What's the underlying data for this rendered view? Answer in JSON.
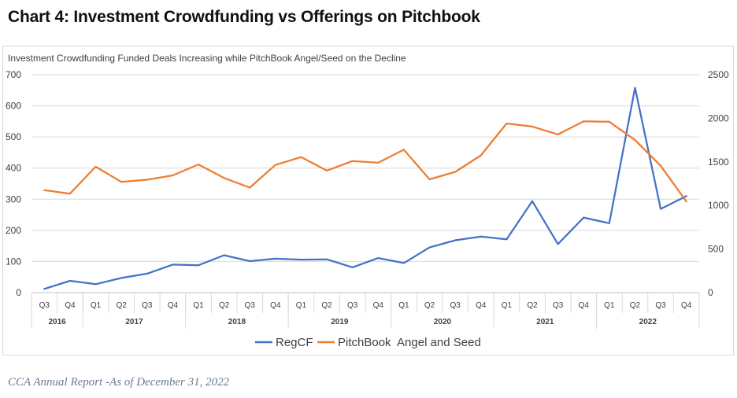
{
  "page": {
    "heading": "Chart 4: Investment Crowdfunding vs Offerings on Pitchbook",
    "caption": "CCA Annual Report -As of December 31, 2022"
  },
  "chart_data": {
    "type": "line",
    "title": "Investment Crowdfunding Funded Deals Increasing while PitchBook Angel/Seed on the Decline",
    "x": [
      "Q3",
      "Q4",
      "Q1",
      "Q2",
      "Q3",
      "Q4",
      "Q1",
      "Q2",
      "Q3",
      "Q4",
      "Q1",
      "Q2",
      "Q3",
      "Q4",
      "Q1",
      "Q2",
      "Q3",
      "Q4",
      "Q1",
      "Q2",
      "Q3",
      "Q4",
      "Q1",
      "Q2",
      "Q3",
      "Q4"
    ],
    "year_groups": [
      {
        "label": "2016",
        "count": 2
      },
      {
        "label": "2017",
        "count": 4
      },
      {
        "label": "2018",
        "count": 4
      },
      {
        "label": "2019",
        "count": 4
      },
      {
        "label": "2020",
        "count": 4
      },
      {
        "label": "2021",
        "count": 4
      },
      {
        "label": "2022",
        "count": 4
      }
    ],
    "y_left": {
      "min": 0,
      "max": 700,
      "ticks": [
        0,
        100,
        200,
        300,
        400,
        500,
        600,
        700
      ]
    },
    "y_right": {
      "min": 0,
      "max": 2500,
      "ticks": [
        0,
        500,
        1000,
        1500,
        2000,
        2500
      ]
    },
    "series": [
      {
        "name": "RegCF",
        "axis": "left",
        "color": "#4472c4",
        "values": [
          12,
          38,
          27,
          47,
          61,
          90,
          88,
          120,
          101,
          109,
          106,
          107,
          81,
          111,
          95,
          145,
          168,
          180,
          171,
          294,
          156,
          241,
          223,
          658,
          269,
          310
        ]
      },
      {
        "name": "PitchBook  Angel and Seed",
        "axis": "right",
        "color": "#ed7d31",
        "values": [
          1175,
          1135,
          1445,
          1270,
          1295,
          1345,
          1470,
          1315,
          1205,
          1465,
          1555,
          1400,
          1510,
          1490,
          1640,
          1300,
          1385,
          1575,
          1940,
          1905,
          1815,
          1965,
          1960,
          1750,
          1455,
          1045
        ]
      }
    ],
    "grid": true,
    "legend": "bottom"
  }
}
